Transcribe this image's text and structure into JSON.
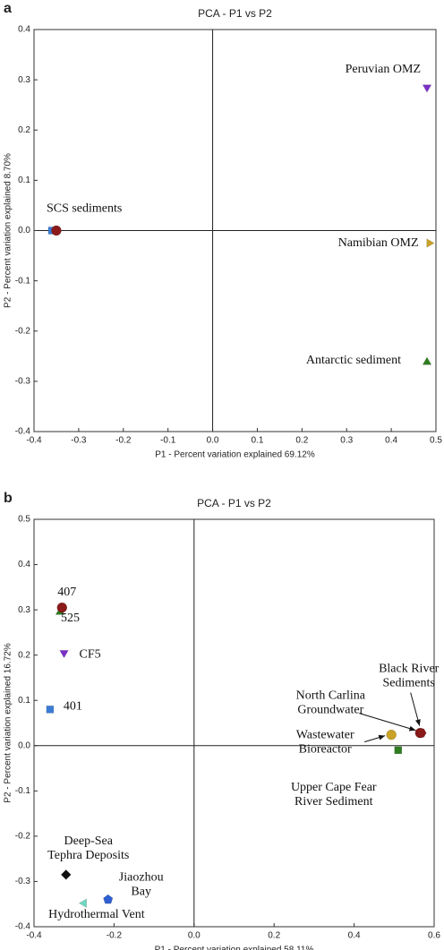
{
  "chart_data": [
    {
      "type": "scatter",
      "panel_label": "a",
      "title": "PCA - P1 vs P2",
      "x_label": "P1 - Percent variation explained 69.12%",
      "y_label": "P2 - Percent variation explained 8.70%",
      "xlim": [
        -0.4,
        0.5
      ],
      "ylim": [
        -0.4,
        0.4
      ],
      "xticks": [
        -0.4,
        -0.3,
        -0.2,
        -0.1,
        {
          "value": 0,
          "label": "0.0"
        },
        0.1,
        0.2,
        0.3,
        0.4,
        0.5
      ],
      "yticks": [
        -0.4,
        -0.3,
        -0.2,
        -0.1,
        {
          "value": 0,
          "label": "0.0"
        },
        0.1,
        0.2,
        0.3,
        0.4
      ],
      "series": [
        {
          "name": "Peruvian OMZ",
          "color": "#7b2fc9",
          "marker": "triangle-down",
          "x": [
            0.48
          ],
          "y": [
            0.285
          ]
        },
        {
          "name": "Namibian OMZ",
          "color": "#c9a227",
          "marker": "triangle-right",
          "x": [
            0.485
          ],
          "y": [
            -0.025
          ]
        },
        {
          "name": "Antarctic sediment",
          "color": "#2e7d1f",
          "marker": "triangle-up",
          "x": [
            0.48
          ],
          "y": [
            -0.262
          ]
        },
        {
          "name": "SCS sediments",
          "color": "#3a7bd5",
          "marker": "square",
          "x": [
            -0.36
          ],
          "y": [
            0
          ]
        },
        {
          "color": "#8b1a1a",
          "marker": "circle",
          "x": [
            -0.35
          ],
          "y": [
            0
          ]
        }
      ]
    },
    {
      "type": "scatter",
      "panel_label": "b",
      "title": "PCA - P1 vs P2",
      "x_label": "P1 - Percent variation explained 58.11%",
      "y_label": "P2 - Percent variation explained 16.72%",
      "xlim": [
        -0.4,
        0.6
      ],
      "ylim": [
        -0.4,
        0.5
      ],
      "xticks": [
        -0.4,
        -0.2,
        {
          "value": 0,
          "label": "0.0"
        },
        0.2,
        0.4,
        0.6
      ],
      "yticks": [
        -0.4,
        -0.3,
        -0.2,
        -0.1,
        {
          "value": 0,
          "label": "0.0"
        },
        0.1,
        0.2,
        0.3,
        0.4,
        0.5
      ],
      "series": [
        {
          "name": "525",
          "color": "#2e7d1f",
          "marker": "triangle-up",
          "x": [
            -0.335
          ],
          "y": [
            0.295
          ]
        },
        {
          "name": "407",
          "color": "#8b1a1a",
          "marker": "circle",
          "x": [
            -0.33
          ],
          "y": [
            0.305
          ]
        },
        {
          "name": "CF5",
          "color": "#7b2fc9",
          "marker": "triangle-down",
          "x": [
            -0.325
          ],
          "y": [
            0.205
          ]
        },
        {
          "name": "401",
          "color": "#3a7bd5",
          "marker": "square",
          "x": [
            -0.36
          ],
          "y": [
            0.08
          ]
        },
        {
          "name": "North Carlina\nGroundwater",
          "color": "#8b1a1a",
          "marker": "circle",
          "x": [
            0.565
          ],
          "y": [
            0.028
          ]
        },
        {
          "name": "Black River\nSediments",
          "color": "#8b1a1a",
          "marker": "hexagon",
          "x": [
            0.568
          ],
          "y": [
            0.028
          ]
        },
        {
          "name": "Wastewater\nBioreactor",
          "color": "#c9a227",
          "marker": "circle",
          "x": [
            0.493
          ],
          "y": [
            0.024
          ]
        },
        {
          "name": "Upper Cape Fear\nRiver Sediment",
          "color": "#2e7d1f",
          "marker": "square",
          "x": [
            0.51
          ],
          "y": [
            -0.01
          ]
        },
        {
          "name": "Deep-Sea\nTephra Deposits",
          "color": "#111111",
          "marker": "diamond",
          "x": [
            -0.32
          ],
          "y": [
            -0.285
          ]
        },
        {
          "name": "Jiaozhou\nBay",
          "color": "#2f5fd0",
          "marker": "pentagon",
          "x": [
            -0.215
          ],
          "y": [
            -0.34
          ]
        },
        {
          "name": "Hydrothermal Vent",
          "color": "#6fd6c0",
          "marker": "triangle-left",
          "x": [
            -0.275
          ],
          "y": [
            -0.348
          ]
        }
      ]
    }
  ]
}
